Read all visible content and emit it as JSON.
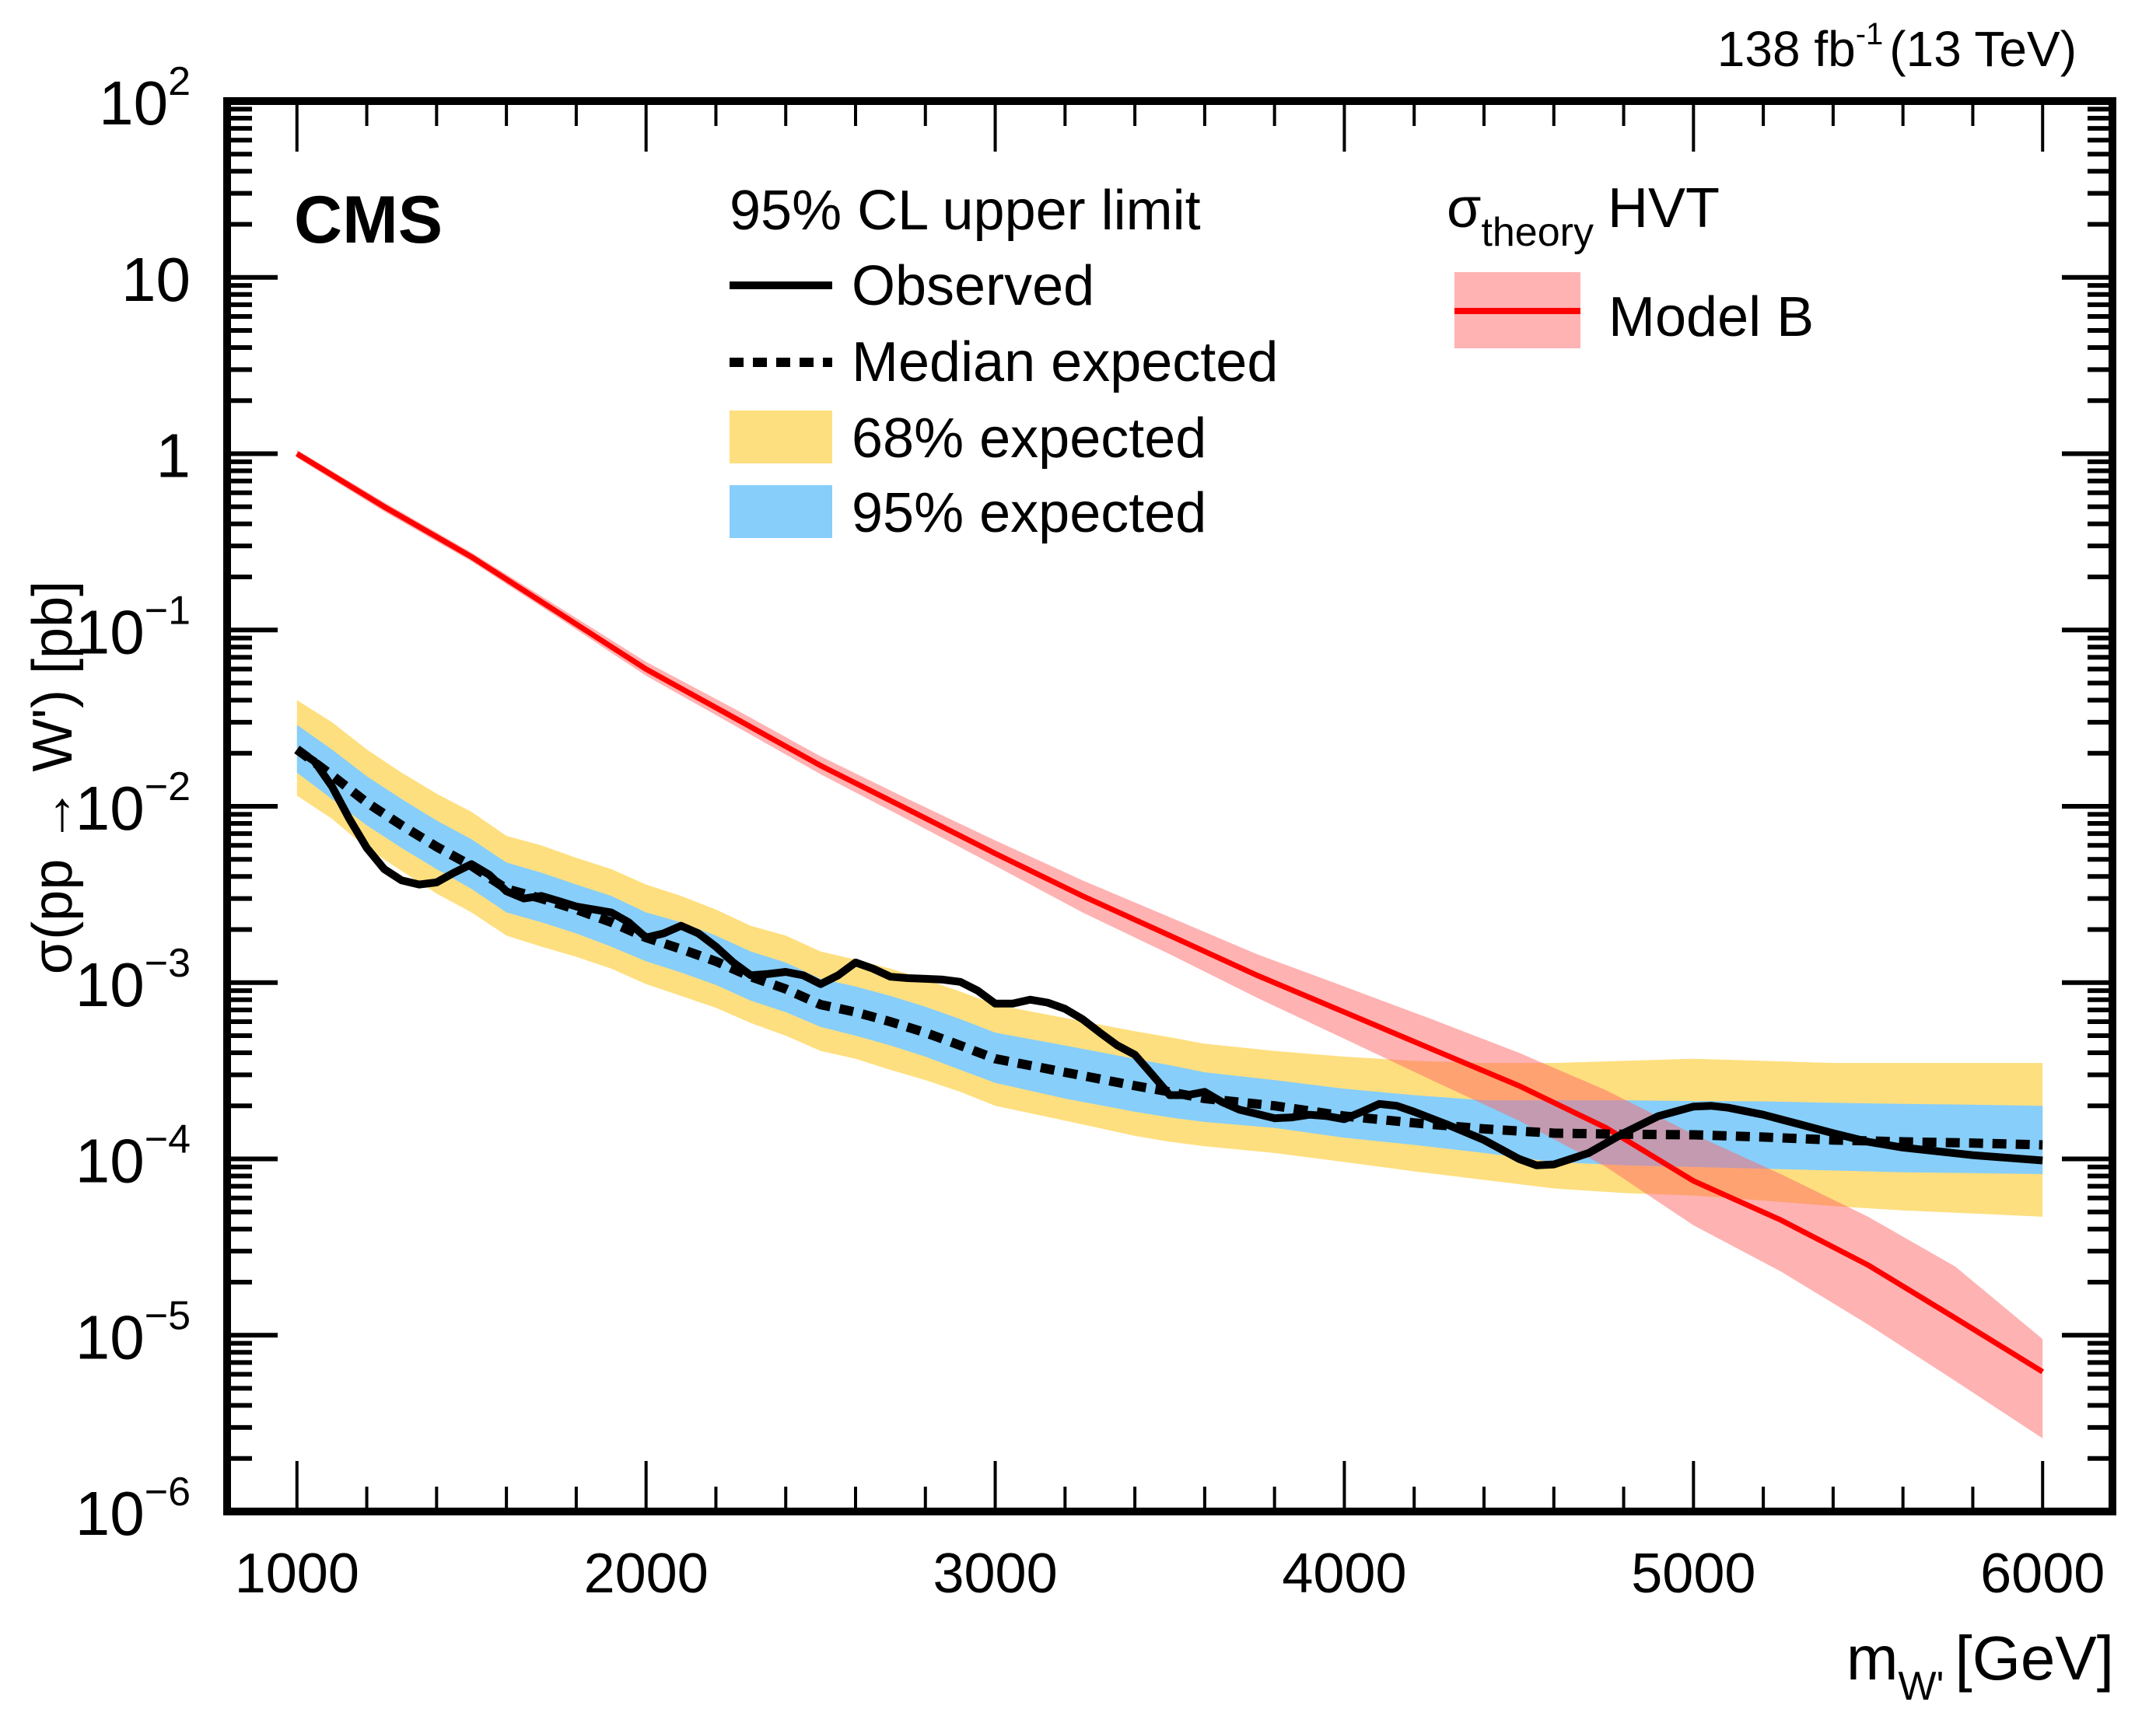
{
  "header": {
    "experiment": "CMS",
    "lumi_value": "138 fb",
    "lumi_exponent": "-1",
    "energy": "(13 TeV)"
  },
  "legend": {
    "limit_title": "95% CL upper limit",
    "observed": "Observed",
    "median": "Median expected",
    "band68": "68% expected",
    "band95": "95% expected",
    "theory_symbol": "σ",
    "theory_subscript": "theory",
    "theory_name": "HVT",
    "model": "Model B"
  },
  "axes": {
    "ylabel_main": "σ(pp → W') [pb]",
    "xlabel_main": "m",
    "xlabel_sub": "W'",
    "xlabel_unit": "[GeV]"
  },
  "colors": {
    "band68": "#fedf7f",
    "band95": "#87cefa",
    "observed": "#000000",
    "theory_line": "#ff0000",
    "theory_band": "#ffb3b3"
  },
  "chart_data": {
    "type": "line",
    "title": "",
    "xlabel": "m_W' [GeV]",
    "ylabel": "σ(pp → W') [pb]",
    "xscale": "linear",
    "yscale": "log",
    "xlim": [
      800,
      6200
    ],
    "ylim": [
      1e-06,
      100
    ],
    "legend_placement": "top",
    "x_ticks": [
      {
        "value": 1000,
        "label": "1000"
      },
      {
        "value": 2000,
        "label": "2000"
      },
      {
        "value": 3000,
        "label": "3000"
      },
      {
        "value": 4000,
        "label": "4000"
      },
      {
        "value": 5000,
        "label": "5000"
      },
      {
        "value": 6000,
        "label": "6000"
      }
    ],
    "y_ticks": [
      {
        "value": 100,
        "base": "10",
        "exp": "2"
      },
      {
        "value": 10,
        "base": "10",
        "exp": ""
      },
      {
        "value": 1,
        "base": "1",
        "exp": ""
      },
      {
        "value": 0.1,
        "base": "10",
        "exp": "−1"
      },
      {
        "value": 0.01,
        "base": "10",
        "exp": "−2"
      },
      {
        "value": 0.001,
        "base": "10",
        "exp": "−3"
      },
      {
        "value": 0.0001,
        "base": "10",
        "exp": "−4"
      },
      {
        "value": 1e-05,
        "base": "10",
        "exp": "−5"
      },
      {
        "value": 1e-06,
        "base": "10",
        "exp": "−6"
      }
    ],
    "expected": {
      "x": [
        1000,
        1100,
        1200,
        1300,
        1400,
        1500,
        1600,
        1700,
        1800,
        1900,
        2000,
        2100,
        2200,
        2300,
        2400,
        2500,
        2600,
        2700,
        2800,
        2900,
        3000,
        3200,
        3400,
        3500,
        3600,
        3800,
        4000,
        4200,
        4400,
        4600,
        4800,
        5000,
        5200,
        5400,
        5600,
        5800,
        6000
      ],
      "median": [
        0.021,
        0.015,
        0.0105,
        0.0078,
        0.0059,
        0.0046,
        0.0034,
        0.003,
        0.0026,
        0.0022,
        0.0018,
        0.00155,
        0.00132,
        0.00108,
        0.00092,
        0.00075,
        0.00068,
        0.0006,
        0.00052,
        0.00044,
        0.00037,
        0.00031,
        0.00026,
        0.00024,
        0.00022,
        0.0002,
        0.000175,
        0.00016,
        0.000148,
        0.00014,
        0.000138,
        0.000137,
        0.000133,
        0.000128,
        0.000125,
        0.000123,
        0.00012
      ],
      "band68_low": [
        0.0155,
        0.011,
        0.0078,
        0.0058,
        0.0044,
        0.0034,
        0.0025,
        0.0022,
        0.0019,
        0.0016,
        0.00132,
        0.00114,
        0.00097,
        0.00079,
        0.00068,
        0.00056,
        0.0005,
        0.00044,
        0.00038,
        0.00032,
        0.00027,
        0.00022,
        0.000185,
        0.000172,
        0.000162,
        0.00015,
        0.000132,
        0.00012,
        0.000108,
        9.6e-05,
        9.2e-05,
        9e-05,
        8.8e-05,
        8.6e-05,
        8.4e-05,
        8.3e-05,
        8.2e-05
      ],
      "band68_high": [
        0.029,
        0.021,
        0.0148,
        0.011,
        0.0083,
        0.0065,
        0.0048,
        0.0042,
        0.0036,
        0.0031,
        0.0025,
        0.0022,
        0.00185,
        0.0015,
        0.0013,
        0.00105,
        0.00095,
        0.00084,
        0.00073,
        0.00062,
        0.00052,
        0.00044,
        0.00037,
        0.00034,
        0.00031,
        0.00028,
        0.00025,
        0.00023,
        0.000215,
        0.000215,
        0.000215,
        0.000213,
        0.000212,
        0.000208,
        0.000205,
        0.000203,
        0.0002
      ],
      "band95_low": [
        0.0115,
        0.0085,
        0.0058,
        0.0043,
        0.0032,
        0.0025,
        0.00185,
        0.0016,
        0.0014,
        0.0012,
        0.00098,
        0.00084,
        0.00072,
        0.00059,
        0.0005,
        0.00041,
        0.00037,
        0.00032,
        0.00028,
        0.00024,
        0.0002,
        0.000165,
        0.000135,
        0.000125,
        0.000118,
        0.000108,
        9.6e-05,
        8.5e-05,
        7.6e-05,
        6.8e-05,
        6.4e-05,
        6.2e-05,
        5.8e-05,
        5.4e-05,
        5.1e-05,
        4.9e-05,
        4.7e-05
      ],
      "band95_high": [
        0.04,
        0.03,
        0.021,
        0.0155,
        0.0118,
        0.0093,
        0.0068,
        0.006,
        0.0051,
        0.0044,
        0.0036,
        0.0031,
        0.0026,
        0.0021,
        0.00185,
        0.0015,
        0.00135,
        0.0012,
        0.00104,
        0.00089,
        0.00075,
        0.00063,
        0.00053,
        0.00049,
        0.00045,
        0.00041,
        0.00038,
        0.00036,
        0.00035,
        0.00035,
        0.00036,
        0.00037,
        0.00036,
        0.00035,
        0.00035,
        0.00035,
        0.00035
      ]
    },
    "observed": {
      "x": [
        1000,
        1050,
        1100,
        1150,
        1200,
        1250,
        1300,
        1350,
        1400,
        1450,
        1500,
        1550,
        1600,
        1650,
        1700,
        1750,
        1800,
        1850,
        1900,
        1950,
        2000,
        2050,
        2100,
        2150,
        2200,
        2250,
        2300,
        2350,
        2400,
        2450,
        2500,
        2550,
        2600,
        2650,
        2700,
        2750,
        2800,
        2850,
        2900,
        2950,
        3000,
        3050,
        3100,
        3150,
        3200,
        3250,
        3300,
        3350,
        3400,
        3450,
        3500,
        3550,
        3600,
        3650,
        3700,
        3750,
        3800,
        3850,
        3900,
        3950,
        4000,
        4050,
        4100,
        4150,
        4200,
        4300,
        4400,
        4500,
        4550,
        4600,
        4700,
        4800,
        4900,
        5000,
        5050,
        5100,
        5200,
        5300,
        5400,
        5500,
        5600,
        5800,
        6000
      ],
      "y": [
        0.021,
        0.018,
        0.013,
        0.0085,
        0.0058,
        0.0044,
        0.0038,
        0.0036,
        0.0037,
        0.0042,
        0.0047,
        0.0041,
        0.0033,
        0.003,
        0.0031,
        0.0029,
        0.0027,
        0.0026,
        0.0025,
        0.0022,
        0.0018,
        0.0019,
        0.0021,
        0.0019,
        0.0016,
        0.0013,
        0.0011,
        0.00112,
        0.00115,
        0.0011,
        0.00098,
        0.0011,
        0.0013,
        0.0012,
        0.00108,
        0.00106,
        0.00105,
        0.00104,
        0.00101,
        0.0009,
        0.00076,
        0.00076,
        0.0008,
        0.00077,
        0.00071,
        0.00062,
        0.00052,
        0.00044,
        0.00039,
        0.0003,
        0.00023,
        0.00023,
        0.00024,
        0.00021,
        0.00019,
        0.00018,
        0.00017,
        0.000172,
        0.000178,
        0.000175,
        0.000168,
        0.000185,
        0.000205,
        0.0002,
        0.000185,
        0.000155,
        0.000128,
        0.0001,
        9.2e-05,
        9.3e-05,
        0.000108,
        0.00014,
        0.000175,
        0.000198,
        0.0002,
        0.000195,
        0.000178,
        0.000158,
        0.00014,
        0.000125,
        0.000116,
        0.000105,
        9.8e-05
      ]
    },
    "theory": {
      "name": "HVT Model B",
      "x": [
        1000,
        1250,
        1500,
        1750,
        2000,
        2250,
        2500,
        2750,
        3000,
        3250,
        3500,
        3750,
        4000,
        4250,
        4500,
        4750,
        5000,
        5250,
        5500,
        5750,
        6000
      ],
      "y": [
        1.0,
        0.5,
        0.26,
        0.125,
        0.06,
        0.032,
        0.017,
        0.0096,
        0.0054,
        0.0031,
        0.00185,
        0.0011,
        0.00068,
        0.00042,
        0.00026,
        0.00015,
        7.5e-05,
        4.5e-05,
        2.5e-05,
        1.25e-05,
        6.2e-06
      ],
      "band_low": [
        0.95,
        0.47,
        0.245,
        0.117,
        0.055,
        0.029,
        0.0152,
        0.0084,
        0.0046,
        0.0025,
        0.00145,
        0.00082,
        0.00048,
        0.00028,
        0.000165,
        9e-05,
        4.2e-05,
        2.3e-05,
        1.15e-05,
        5.5e-06,
        2.6e-06
      ],
      "band_high": [
        1.05,
        0.53,
        0.275,
        0.135,
        0.066,
        0.036,
        0.0192,
        0.011,
        0.0064,
        0.0038,
        0.00235,
        0.00145,
        0.00095,
        0.00062,
        0.0004,
        0.000245,
        0.000138,
        8.2e-05,
        4.7e-05,
        2.45e-05,
        9.5e-06
      ]
    }
  }
}
